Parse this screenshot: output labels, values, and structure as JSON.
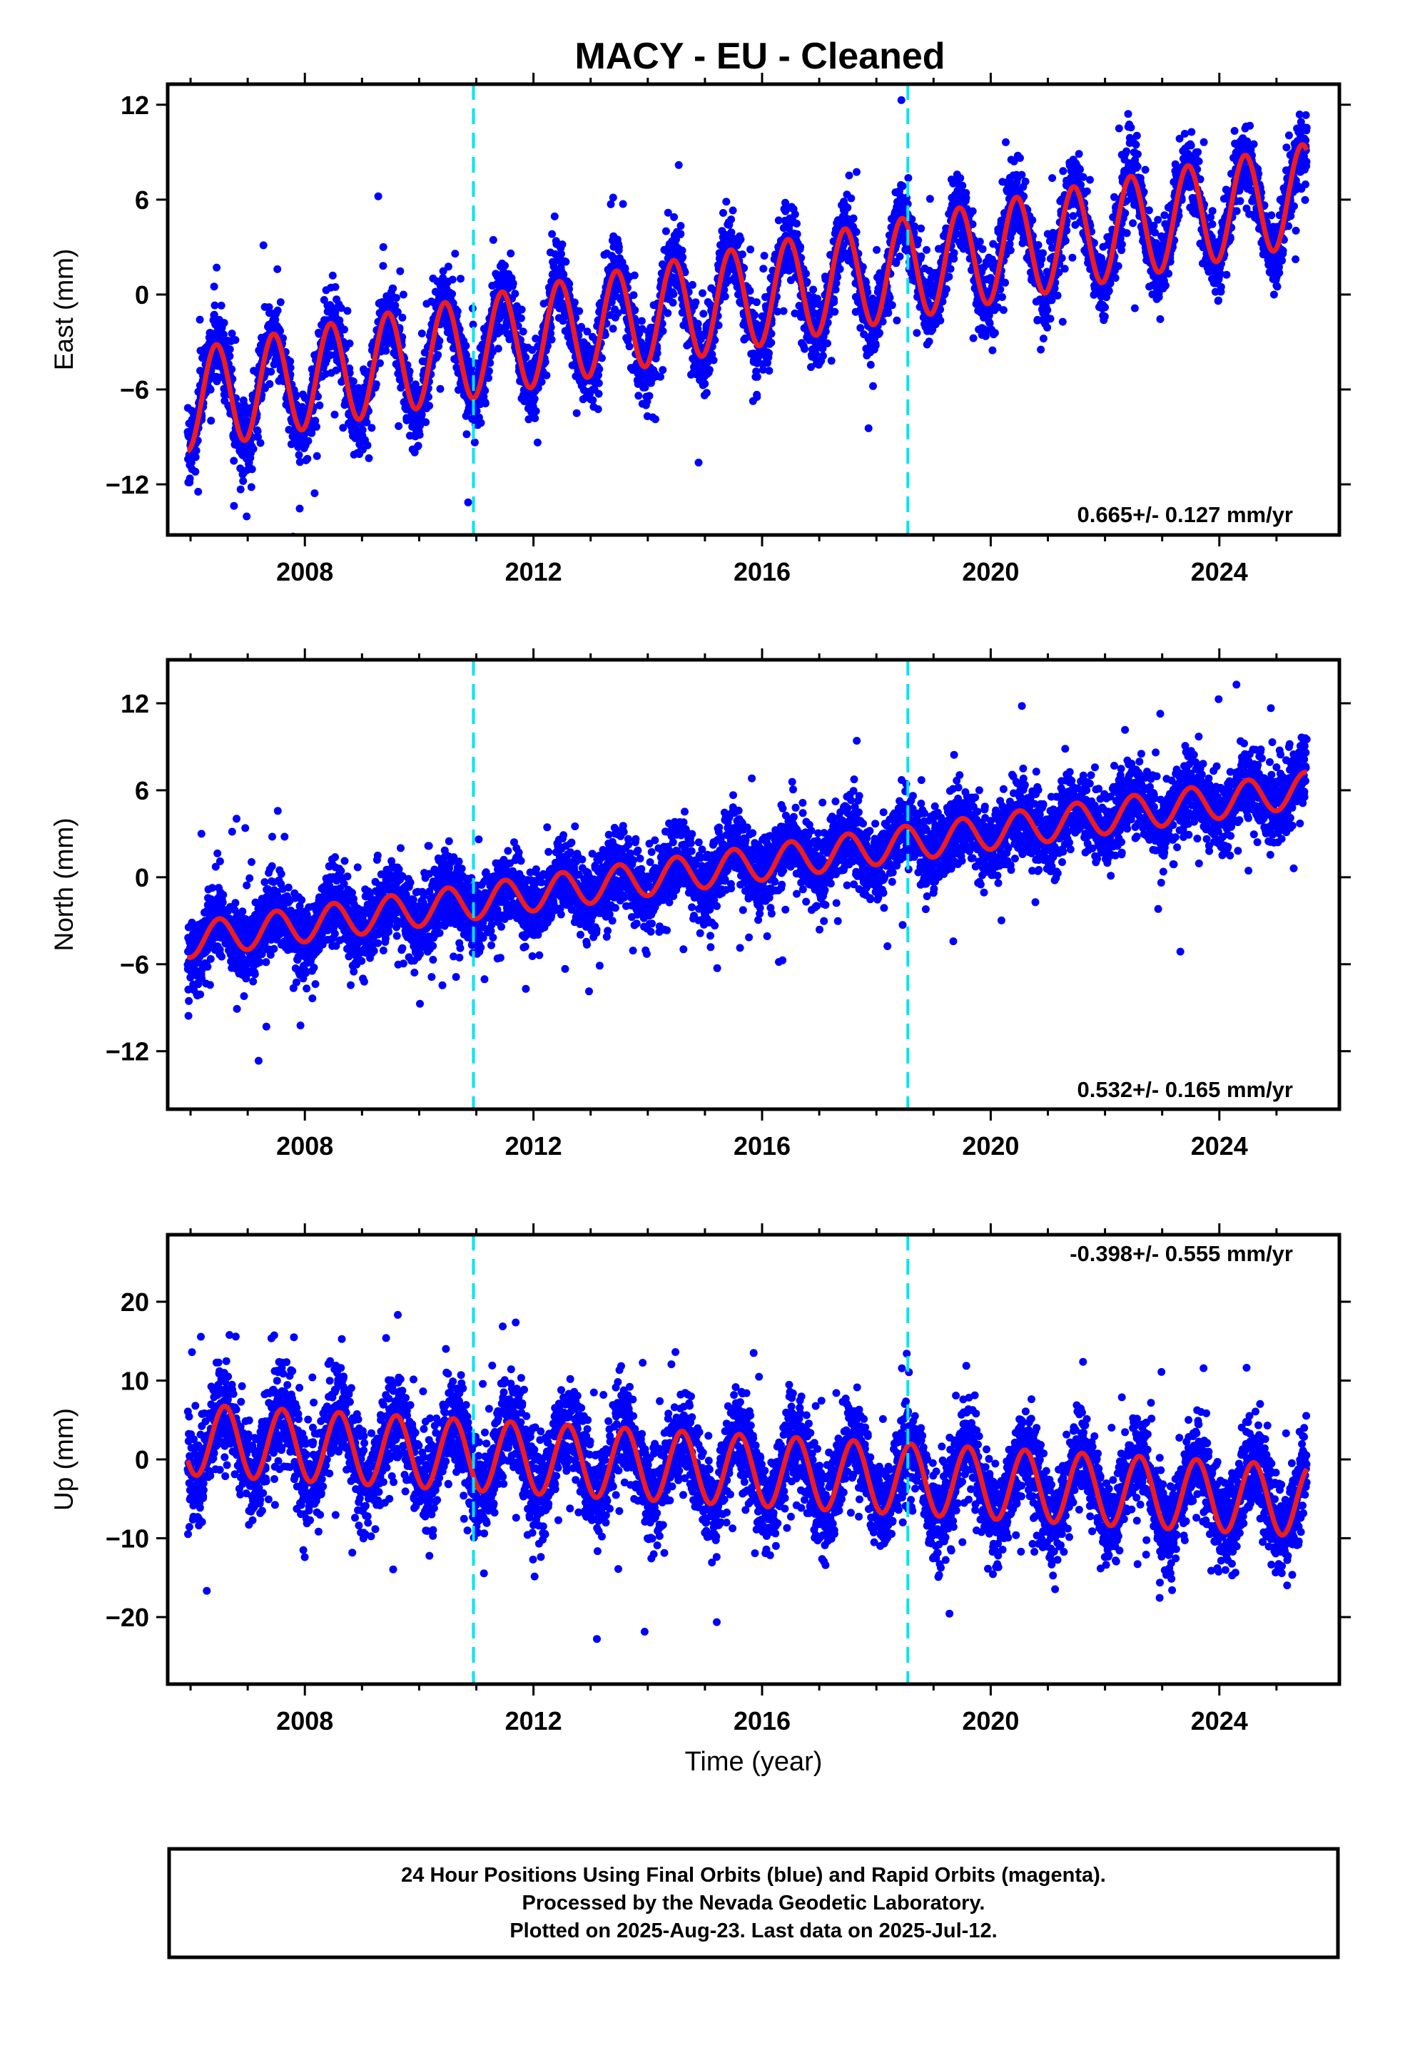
{
  "figure": {
    "title": "MACY  - EU - Cleaned",
    "xlabel": "Time (year)",
    "footer": [
      "24 Hour Positions Using Final Orbits (blue) and Rapid Orbits (magenta).",
      "Processed by the Nevada Geodetic Laboratory.",
      "Plotted on 2025-Aug-23. Last data on 2025-Jul-12."
    ],
    "colors": {
      "data": "#0000ff",
      "model": "#ee1c1c",
      "steps": "#00e5ee",
      "frame": "#000000"
    }
  },
  "chart_data": [
    {
      "type": "scatter",
      "ylabel": "East (mm)",
      "rate_label": "0.665+/- 0.127 mm/yr",
      "xlim": [
        2005.6,
        2026.1
      ],
      "ylim": [
        -15.2,
        13.3
      ],
      "xticks": [
        2008,
        2012,
        2016,
        2020,
        2024
      ],
      "yticks": [
        -12,
        -6,
        0,
        6,
        12
      ],
      "ytick_labels": [
        "−12",
        "−6",
        "0",
        "6",
        "12"
      ],
      "step_lines": [
        2010.95,
        2018.55
      ],
      "data_start": 2005.95,
      "data_end": 2025.53,
      "series": [
        {
          "kind": "points",
          "color": "#0000ff",
          "model": {
            "offset": -4.0,
            "trend": 0.665,
            "t0": 2010.0,
            "amp": 3.2,
            "phase": 2006.45,
            "noise": 2.0
          }
        },
        {
          "kind": "model-line",
          "color": "#ee1c1c",
          "model": {
            "offset": -4.0,
            "trend": 0.665,
            "t0": 2010.0,
            "amp": 3.2,
            "phase": 2006.45
          }
        }
      ]
    },
    {
      "type": "scatter",
      "ylabel": "North (mm)",
      "rate_label": "0.532+/- 0.165 mm/yr",
      "xlim": [
        2005.6,
        2026.1
      ],
      "ylim": [
        -16.0,
        15.0
      ],
      "xticks": [
        2008,
        2012,
        2016,
        2020,
        2024
      ],
      "yticks": [
        -12,
        -6,
        0,
        6,
        12
      ],
      "ytick_labels": [
        "−12",
        "−6",
        "0",
        "6",
        "12"
      ],
      "step_lines": [
        2010.95,
        2018.55
      ],
      "data_start": 2005.95,
      "data_end": 2025.53,
      "series": [
        {
          "kind": "points",
          "color": "#0000ff",
          "model": {
            "offset": -2.2,
            "trend": 0.532,
            "t0": 2010.0,
            "amp": 1.2,
            "phase": 2006.5,
            "noise": 2.3
          }
        },
        {
          "kind": "model-line",
          "color": "#ee1c1c",
          "model": {
            "offset": -2.2,
            "trend": 0.532,
            "t0": 2010.0,
            "amp": 1.2,
            "phase": 2006.5
          }
        }
      ]
    },
    {
      "type": "scatter",
      "ylabel": "Up (mm)",
      "rate_label": "-0.398+/- 0.555 mm/yr",
      "xlim": [
        2005.6,
        2026.1
      ],
      "ylim": [
        -28.5,
        28.5
      ],
      "xticks": [
        2008,
        2012,
        2016,
        2020,
        2024
      ],
      "yticks": [
        -20,
        -10,
        0,
        10,
        20
      ],
      "ytick_labels": [
        "−20",
        "−10",
        "0",
        "10",
        "20"
      ],
      "step_lines": [
        2010.95,
        2018.55
      ],
      "data_start": 2005.95,
      "data_end": 2025.53,
      "series": [
        {
          "kind": "points",
          "color": "#0000ff",
          "model": {
            "offset": 2.5,
            "trend": -0.398,
            "t0": 2006.0,
            "amp": 4.5,
            "phase": 2006.6,
            "noise": 5.2
          }
        },
        {
          "kind": "model-line",
          "color": "#ee1c1c",
          "model": {
            "offset": 2.5,
            "trend": -0.398,
            "t0": 2006.0,
            "amp": 4.5,
            "phase": 2006.6
          }
        }
      ]
    }
  ]
}
